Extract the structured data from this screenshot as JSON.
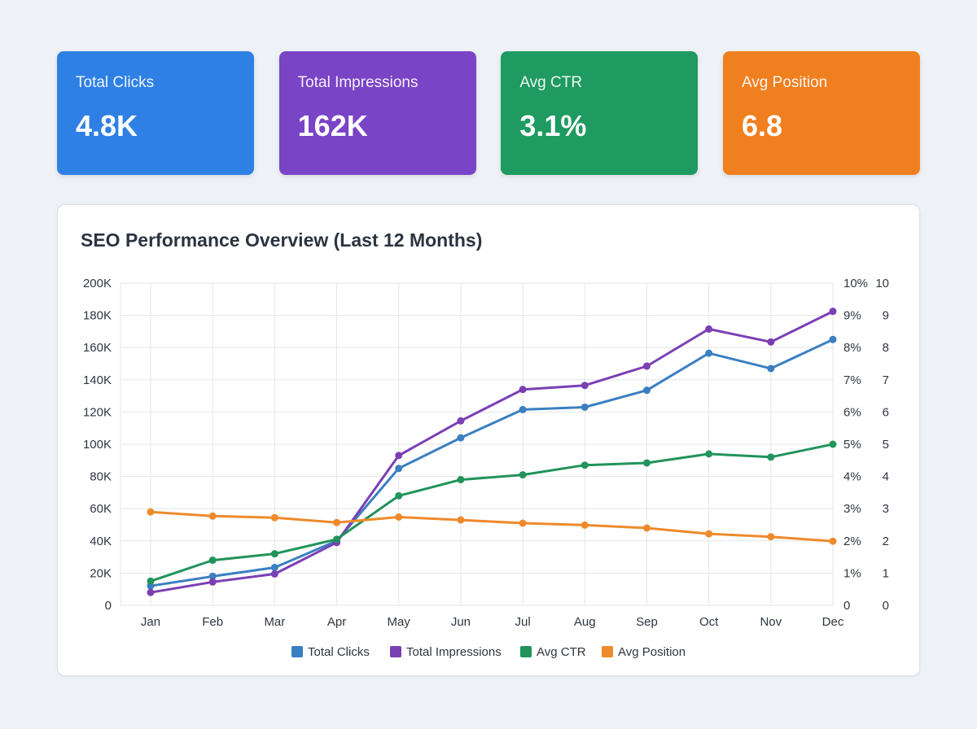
{
  "kpis": [
    {
      "label": "Total Clicks",
      "value": "4.8K",
      "color": "#2f80e4"
    },
    {
      "label": "Total Impressions",
      "value": "162K",
      "color": "#7a44c6"
    },
    {
      "label": "Avg CTR",
      "value": "3.1%",
      "color": "#1f9a60"
    },
    {
      "label": "Avg Position",
      "value": "6.8",
      "color": "#f07f1f"
    }
  ],
  "chart_data": {
    "type": "line",
    "title": "SEO Performance Overview (Last 12 Months)",
    "categories": [
      "Jan",
      "Feb",
      "Mar",
      "Apr",
      "May",
      "Jun",
      "Jul",
      "Aug",
      "Sep",
      "Oct",
      "Nov",
      "Dec"
    ],
    "axes": {
      "left": {
        "min": 0,
        "max": 200000,
        "ticks": [
          "0",
          "20K",
          "40K",
          "60K",
          "80K",
          "100K",
          "120K",
          "140K",
          "160K",
          "180K",
          "200K"
        ]
      },
      "right_pct": {
        "min": 0,
        "max": 10,
        "ticks": [
          "0",
          "1%",
          "2%",
          "3%",
          "4%",
          "5%",
          "6%",
          "7%",
          "8%",
          "9%",
          "10%"
        ]
      },
      "right_pos": {
        "min": 0,
        "max": 10,
        "ticks": [
          "0",
          "1",
          "2",
          "3",
          "4",
          "5",
          "6",
          "7",
          "8",
          "9",
          "10"
        ]
      }
    },
    "grid": true,
    "legend_position": "bottom",
    "series": [
      {
        "name": "Total Clicks",
        "color": "#3a7fc2",
        "axis": "left",
        "values": [
          12000,
          18000,
          23500,
          40000,
          85000,
          104000,
          121500,
          123000,
          133500,
          156500,
          147000,
          165000
        ]
      },
      {
        "name": "Total Impressions",
        "color": "#7b3fb4",
        "axis": "left",
        "values": [
          8000,
          14500,
          19500,
          39000,
          93000,
          114500,
          134000,
          136500,
          148500,
          171500,
          163500,
          182500
        ]
      },
      {
        "name": "Avg CTR",
        "color": "#21935b",
        "axis": "right_pct",
        "values": [
          0.75,
          1.4,
          1.6,
          2.05,
          3.4,
          3.9,
          4.05,
          4.35,
          4.42,
          4.7,
          4.6,
          5.0
        ]
      },
      {
        "name": "Avg Position",
        "color": "#ee8a2c",
        "axis": "right_pos",
        "values": [
          2.9,
          2.77,
          2.72,
          2.57,
          2.74,
          2.65,
          2.55,
          2.49,
          2.4,
          2.22,
          2.13,
          1.99
        ]
      }
    ]
  }
}
